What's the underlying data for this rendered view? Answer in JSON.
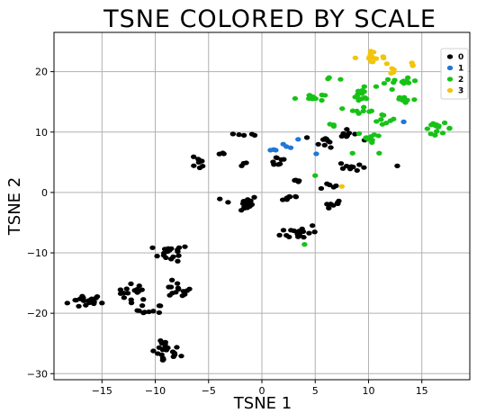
{
  "chart_data": {
    "type": "scatter",
    "title": "TSNE COLORED BY SCALE",
    "xlabel": "TSNE 1",
    "ylabel": "TSNE 2",
    "xlim": [
      -19.5,
      19.5
    ],
    "ylim": [
      -31,
      26.5
    ],
    "xticks": [
      -15,
      -10,
      -5,
      0,
      5,
      10,
      15
    ],
    "yticks": [
      -30,
      -20,
      -10,
      0,
      10,
      20
    ],
    "grid": true,
    "legend_position": "top-right",
    "series": [
      {
        "name": "0",
        "color": "#000000",
        "clusters": [
          {
            "cx": -16.5,
            "cy": -18,
            "sx": 1.0,
            "sy": 0.7,
            "n": 18
          },
          {
            "cx": -15.0,
            "cy": -18.3,
            "sx": 0.1,
            "sy": 0.1,
            "n": 1
          },
          {
            "cx": -12.0,
            "cy": -16.5,
            "sx": 0.9,
            "sy": 0.8,
            "n": 16
          },
          {
            "cx": -10.5,
            "cy": -19.5,
            "sx": 0.7,
            "sy": 0.6,
            "n": 10
          },
          {
            "cx": -8.5,
            "cy": -10,
            "sx": 1.0,
            "sy": 0.8,
            "n": 18
          },
          {
            "cx": -8.0,
            "cy": -16.2,
            "sx": 0.8,
            "sy": 0.8,
            "n": 14
          },
          {
            "cx": -9.0,
            "cy": -26.5,
            "sx": 0.8,
            "sy": 1.2,
            "n": 22
          },
          {
            "cx": -6.0,
            "cy": 4.8,
            "sx": 0.4,
            "sy": 0.6,
            "n": 8
          },
          {
            "cx": -3.5,
            "cy": 6.5,
            "sx": 0.3,
            "sy": 0.1,
            "n": 3
          },
          {
            "cx": -1.8,
            "cy": 9.5,
            "sx": 0.7,
            "sy": 0.2,
            "n": 5
          },
          {
            "cx": -1.5,
            "cy": 5.0,
            "sx": 0.3,
            "sy": 0.5,
            "n": 3
          },
          {
            "cx": -2.0,
            "cy": -1.8,
            "sx": 1.0,
            "sy": 0.8,
            "n": 18
          },
          {
            "cx": 1.5,
            "cy": 5.2,
            "sx": 0.5,
            "sy": 0.6,
            "n": 8
          },
          {
            "cx": 2.5,
            "cy": -0.8,
            "sx": 0.7,
            "sy": 0.4,
            "n": 8
          },
          {
            "cx": 3.5,
            "cy": 1.8,
            "sx": 0.5,
            "sy": 0.3,
            "n": 4
          },
          {
            "cx": 3.5,
            "cy": -6.5,
            "sx": 1.0,
            "sy": 0.8,
            "n": 18
          },
          {
            "cx": 6.0,
            "cy": 8.5,
            "sx": 0.6,
            "sy": 0.6,
            "n": 10
          },
          {
            "cx": 6.0,
            "cy": 1.2,
            "sx": 0.5,
            "sy": 0.3,
            "n": 5
          },
          {
            "cx": 6.8,
            "cy": -2.0,
            "sx": 0.6,
            "sy": 0.3,
            "n": 7
          },
          {
            "cx": 8.0,
            "cy": 9.5,
            "sx": 0.7,
            "sy": 0.5,
            "n": 8
          },
          {
            "cx": 8.5,
            "cy": 4.3,
            "sx": 0.7,
            "sy": 0.5,
            "n": 10
          },
          {
            "cx": 12.7,
            "cy": 4.4,
            "sx": 0.1,
            "sy": 0.1,
            "n": 1
          }
        ]
      },
      {
        "name": "1",
        "color": "#1f77d4",
        "points": [
          [
            0.8,
            7.0
          ],
          [
            1.1,
            7.1
          ],
          [
            1.3,
            7.0
          ],
          [
            2.0,
            8.0
          ],
          [
            2.3,
            7.6
          ],
          [
            2.7,
            7.4
          ],
          [
            3.4,
            8.8
          ],
          [
            5.1,
            6.4
          ],
          [
            13.3,
            11.7
          ]
        ]
      },
      {
        "name": "2",
        "color": "#17c217",
        "clusters": [
          {
            "cx": 4.5,
            "cy": 15.8,
            "sx": 0.8,
            "sy": 0.4,
            "n": 10
          },
          {
            "cx": 6.2,
            "cy": 18.8,
            "sx": 0.5,
            "sy": 0.3,
            "n": 3
          },
          {
            "cx": 9.5,
            "cy": 16.2,
            "sx": 0.7,
            "sy": 0.9,
            "n": 14
          },
          {
            "cx": 9.5,
            "cy": 13.8,
            "sx": 0.8,
            "sy": 0.4,
            "n": 8
          },
          {
            "cx": 11.5,
            "cy": 12.0,
            "sx": 0.6,
            "sy": 0.6,
            "n": 8
          },
          {
            "cx": 13.0,
            "cy": 18.2,
            "sx": 0.9,
            "sy": 0.4,
            "n": 12
          },
          {
            "cx": 13.5,
            "cy": 15.5,
            "sx": 0.7,
            "sy": 0.6,
            "n": 7
          },
          {
            "cx": 10.3,
            "cy": 9.2,
            "sx": 0.8,
            "sy": 0.5,
            "n": 10
          },
          {
            "cx": 16.5,
            "cy": 10.6,
            "sx": 0.8,
            "sy": 0.5,
            "n": 14
          },
          {
            "cx": 6.5,
            "cy": 11.2,
            "sx": 0.3,
            "sy": 0.2,
            "n": 3
          },
          {
            "cx": 4.0,
            "cy": -8.6,
            "sx": 0.1,
            "sy": 0.1,
            "n": 1
          },
          {
            "cx": 5.0,
            "cy": 2.8,
            "sx": 0.1,
            "sy": 0.1,
            "n": 1
          },
          {
            "cx": 11.0,
            "cy": 6.5,
            "sx": 0.1,
            "sy": 0.1,
            "n": 1
          },
          {
            "cx": 8.5,
            "cy": 6.5,
            "sx": 0.1,
            "sy": 0.1,
            "n": 1
          }
        ]
      },
      {
        "name": "3",
        "color": "#f2c40c",
        "clusters": [
          {
            "cx": 10.0,
            "cy": 22.4,
            "sx": 0.9,
            "sy": 0.5,
            "n": 14
          },
          {
            "cx": 12.7,
            "cy": 20.2,
            "sx": 0.5,
            "sy": 0.3,
            "n": 4
          },
          {
            "cx": 14.0,
            "cy": 20.8,
            "sx": 0.3,
            "sy": 0.4,
            "n": 3
          },
          {
            "cx": 7.5,
            "cy": 1.0,
            "sx": 0.1,
            "sy": 0.1,
            "n": 1
          }
        ]
      }
    ]
  }
}
